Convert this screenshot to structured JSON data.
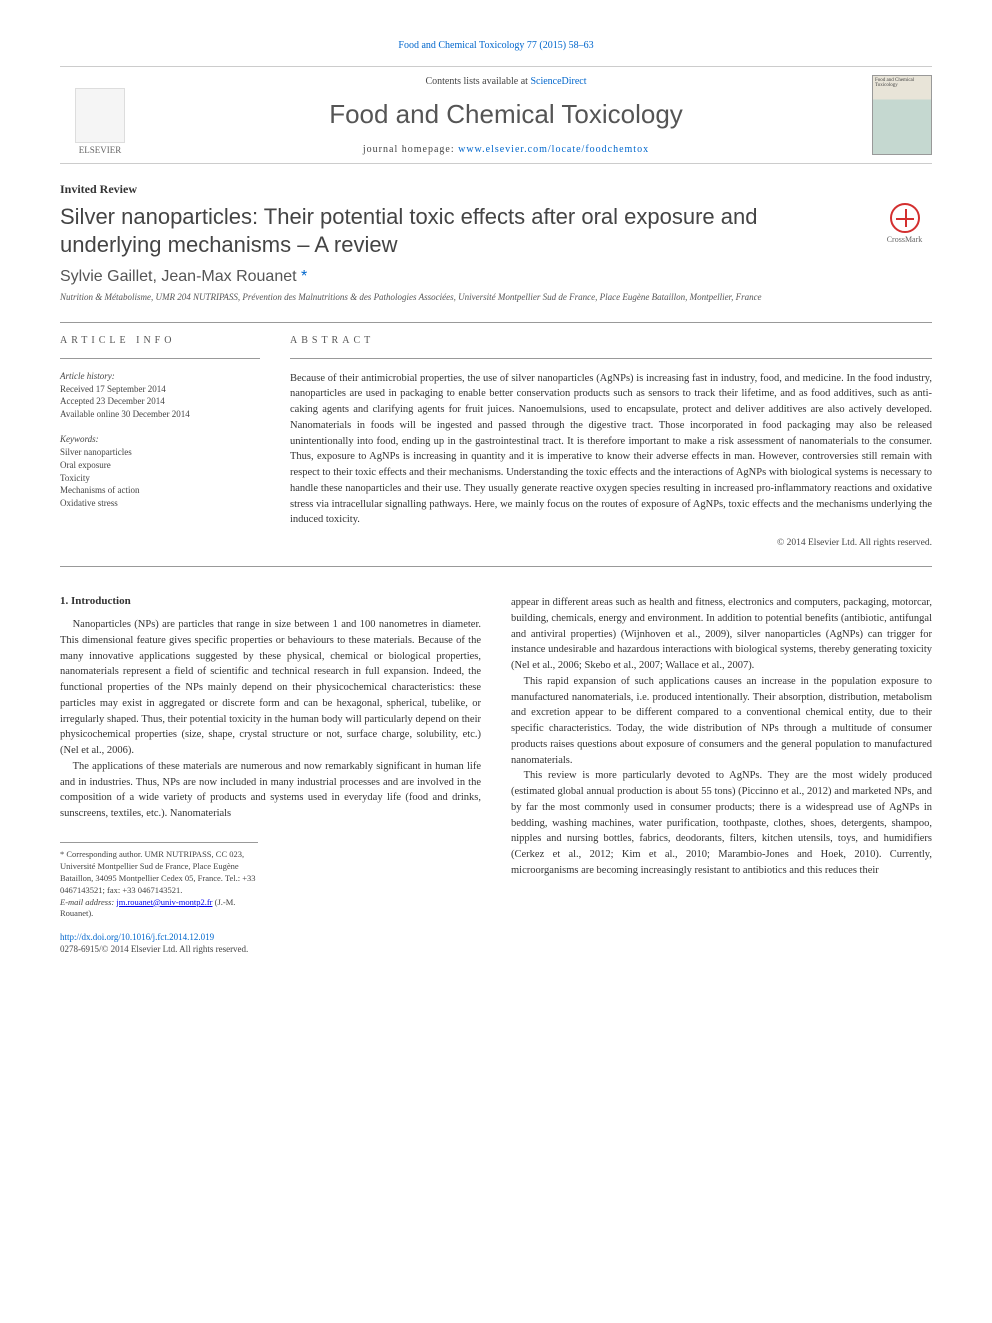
{
  "colors": {
    "link": "#0066cc",
    "text": "#333333",
    "muted": "#555555",
    "border": "#999999",
    "crossmark": "#d32f2f",
    "cover_top": "#e8e4d8",
    "cover_bottom": "#c5d8d0"
  },
  "fonts": {
    "serif": "Georgia, 'Times New Roman', serif",
    "sans": "Arial, sans-serif",
    "title_size_pt": 22,
    "journal_title_size_pt": 26,
    "body_size_pt": 10.5,
    "abstract_size_pt": 10.5,
    "meta_size_pt": 9
  },
  "header": {
    "citation": "Food and Chemical Toxicology 77 (2015) 58–63",
    "contents_prefix": "Contents lists available at ",
    "contents_link": "ScienceDirect",
    "journal_title": "Food and Chemical Toxicology",
    "homepage_prefix": "journal homepage: ",
    "homepage_link": "www.elsevier.com/locate/foodchemtox",
    "publisher_name": "ELSEVIER",
    "cover_text": "Food and Chemical Toxicology"
  },
  "article": {
    "type": "Invited Review",
    "title": "Silver nanoparticles: Their potential toxic effects after oral exposure and underlying mechanisms – A review",
    "crossmark_label": "CrossMark",
    "authors_plain": "Sylvie Gaillet, Jean-Max Rouanet",
    "author1": "Sylvie Gaillet, ",
    "author2": "Jean-Max Rouanet ",
    "corr_marker": "*",
    "affiliation": "Nutrition & Métabolisme, UMR 204 NUTRIPASS, Prévention des Malnutritions & des Pathologies Associées, Université Montpellier Sud de France, Place Eugène Bataillon, Montpellier, France"
  },
  "meta": {
    "info_label": "ARTICLE INFO",
    "history_label": "Article history:",
    "history": [
      "Received 17 September 2014",
      "Accepted 23 December 2014",
      "Available online 30 December 2014"
    ],
    "keywords_label": "Keywords:",
    "keywords": [
      "Silver nanoparticles",
      "Oral exposure",
      "Toxicity",
      "Mechanisms of action",
      "Oxidative stress"
    ]
  },
  "abstract": {
    "label": "ABSTRACT",
    "text": "Because of their antimicrobial properties, the use of silver nanoparticles (AgNPs) is increasing fast in industry, food, and medicine. In the food industry, nanoparticles are used in packaging to enable better conservation products such as sensors to track their lifetime, and as food additives, such as anti-caking agents and clarifying agents for fruit juices. Nanoemulsions, used to encapsulate, protect and deliver additives are also actively developed. Nanomaterials in foods will be ingested and passed through the digestive tract. Those incorporated in food packaging may also be released unintentionally into food, ending up in the gastrointestinal tract. It is therefore important to make a risk assessment of nanomaterials to the consumer. Thus, exposure to AgNPs is increasing in quantity and it is imperative to know their adverse effects in man. However, controversies still remain with respect to their toxic effects and their mechanisms. Understanding the toxic effects and the interactions of AgNPs with biological systems is necessary to handle these nanoparticles and their use. They usually generate reactive oxygen species resulting in increased pro-inflammatory reactions and oxidative stress via intracellular signalling pathways. Here, we mainly focus on the routes of exposure of AgNPs, toxic effects and the mechanisms underlying the induced toxicity.",
    "copyright": "© 2014 Elsevier Ltd. All rights reserved."
  },
  "body": {
    "section1_heading": "1. Introduction",
    "left_paras": [
      "Nanoparticles (NPs) are particles that range in size between 1 and 100 nanometres in diameter. This dimensional feature gives specific properties or behaviours to these materials. Because of the many innovative applications suggested by these physical, chemical or biological properties, nanomaterials represent a field of scientific and technical research in full expansion. Indeed, the functional properties of the NPs mainly depend on their physicochemical characteristics: these particles may exist in aggregated or discrete form and can be hexagonal, spherical, tubelike, or irregularly shaped. Thus, their potential toxicity in the human body will particularly depend on their physicochemical properties (size, shape, crystal structure or not, surface charge, solubility, etc.) (Nel et al., 2006).",
      "The applications of these materials are numerous and now remarkably significant in human life and in industries. Thus, NPs are now included in many industrial processes and are involved in the composition of a wide variety of products and systems used in everyday life (food and drinks, sunscreens, textiles, etc.). Nanomaterials"
    ],
    "right_paras": [
      "appear in different areas such as health and fitness, electronics and computers, packaging, motorcar, building, chemicals, energy and environment. In addition to potential benefits (antibiotic, antifungal and antiviral properties) (Wijnhoven et al., 2009), silver nanoparticles (AgNPs) can trigger for instance undesirable and hazardous interactions with biological systems, thereby generating toxicity (Nel et al., 2006; Skebo et al., 2007; Wallace et al., 2007).",
      "This rapid expansion of such applications causes an increase in the population exposure to manufactured nanomaterials, i.e. produced intentionally. Their absorption, distribution, metabolism and excretion appear to be different compared to a conventional chemical entity, due to their specific characteristics. Today, the wide distribution of NPs through a multitude of consumer products raises questions about exposure of consumers and the general population to manufactured nanomaterials.",
      "This review is more particularly devoted to AgNPs. They are the most widely produced (estimated global annual production is about 55 tons) (Piccinno et al., 2012) and marketed NPs, and by far the most commonly used in consumer products; there is a widespread use of AgNPs in bedding, washing machines, water purification, toothpaste, clothes, shoes, detergents, shampoo, nipples and nursing bottles, fabrics, deodorants, filters, kitchen utensils, toys, and humidifiers (Cerkez et al., 2012; Kim et al., 2010; Marambio-Jones and Hoek, 2010). Currently, microorganisms are becoming increasingly resistant to antibiotics and this reduces their"
    ]
  },
  "footer": {
    "corr_text": "* Corresponding author. UMR NUTRIPASS, CC 023, Université Montpellier Sud de France, Place Eugène Bataillon, 34095 Montpellier Cedex 05, France. Tel.: +33 0467143521; fax: +33 0467143521.",
    "email_label": "E-mail address: ",
    "email": "jm.rouanet@univ-montp2.fr",
    "email_suffix": " (J.-M. Rouanet).",
    "doi": "http://dx.doi.org/10.1016/j.fct.2014.12.019",
    "issn_line": "0278-6915/© 2014 Elsevier Ltd. All rights reserved."
  }
}
